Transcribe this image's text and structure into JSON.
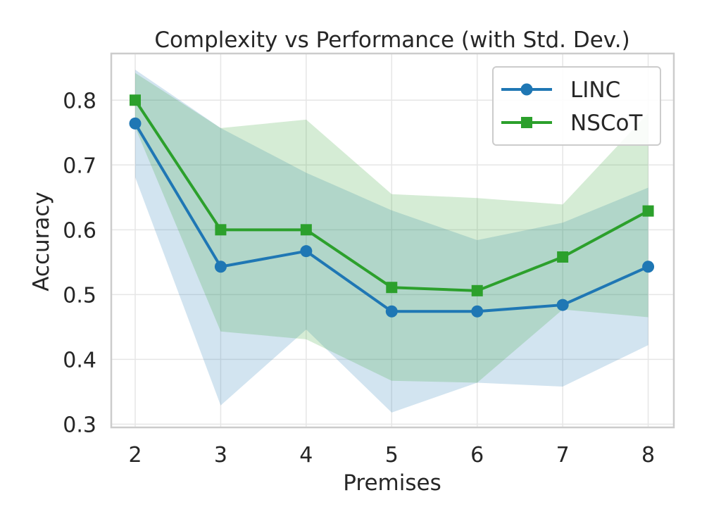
{
  "chart_data": {
    "type": "line",
    "title": "Complexity vs Performance (with Std. Dev.)",
    "xlabel": "Premises",
    "ylabel": "Accuracy",
    "x": [
      2,
      3,
      4,
      5,
      6,
      7,
      8
    ],
    "xlim": [
      1.72,
      8.3
    ],
    "ylim": [
      0.295,
      0.872
    ],
    "yticks": [
      0.3,
      0.4,
      0.5,
      0.6,
      0.7,
      0.8
    ],
    "ytick_labels": [
      "0.3",
      "0.4",
      "0.5",
      "0.6",
      "0.7",
      "0.8"
    ],
    "xtick_labels": [
      "2",
      "3",
      "4",
      "5",
      "6",
      "7",
      "8"
    ],
    "grid": true,
    "legend_position": "top-right",
    "series": [
      {
        "name": "LINC",
        "color": "#1f77b4",
        "marker": "circle",
        "values": [
          0.764,
          0.543,
          0.567,
          0.474,
          0.474,
          0.484,
          0.543
        ],
        "std_upper": [
          0.847,
          0.757,
          0.688,
          0.63,
          0.584,
          0.611,
          0.665
        ],
        "std_lower": [
          0.681,
          0.329,
          0.446,
          0.318,
          0.364,
          0.358,
          0.422
        ]
      },
      {
        "name": "NSCoT",
        "color": "#2ca02c",
        "marker": "square",
        "values": [
          0.8,
          0.6,
          0.6,
          0.511,
          0.506,
          0.558,
          0.629
        ],
        "std_upper": [
          0.842,
          0.757,
          0.77,
          0.655,
          0.649,
          0.639,
          0.78
        ],
        "std_lower": [
          0.758,
          0.443,
          0.431,
          0.367,
          0.364,
          0.477,
          0.465
        ]
      }
    ]
  }
}
